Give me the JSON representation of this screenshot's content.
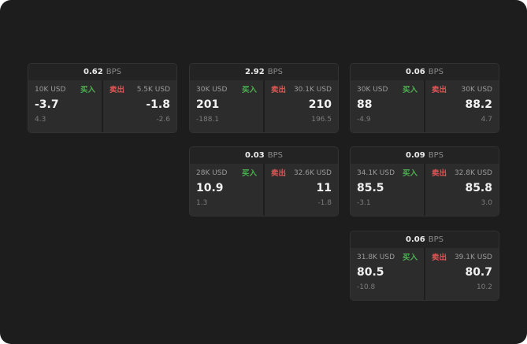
{
  "units": {
    "bps": "BPS"
  },
  "labels": {
    "buy": "买入",
    "sell": "卖出"
  },
  "colors": {
    "background": "#1d1d1d",
    "card": "#222222",
    "panel": "#2c2c2c",
    "buy_accent": "#4caf50",
    "sell_accent": "#e05555"
  },
  "cards": [
    {
      "bps": "0.62",
      "buy": {
        "amount": "10K USD",
        "price": "-3.7",
        "sub": "4.3"
      },
      "sell": {
        "amount": "5.5K USD",
        "price": "-1.8",
        "sub": "-2.6"
      }
    },
    {
      "bps": "2.92",
      "buy": {
        "amount": "30K USD",
        "price": "201",
        "sub": "-188.1"
      },
      "sell": {
        "amount": "30.1K USD",
        "price": "210",
        "sub": "196.5"
      }
    },
    {
      "bps": "0.06",
      "buy": {
        "amount": "30K USD",
        "price": "88",
        "sub": "-4.9"
      },
      "sell": {
        "amount": "30K USD",
        "price": "88.2",
        "sub": "4.7"
      }
    },
    {
      "bps": "0.03",
      "buy": {
        "amount": "28K USD",
        "price": "10.9",
        "sub": "1.3"
      },
      "sell": {
        "amount": "32.6K USD",
        "price": "11",
        "sub": "-1.8"
      }
    },
    {
      "bps": "0.09",
      "buy": {
        "amount": "34.1K USD",
        "price": "85.5",
        "sub": "-3.1"
      },
      "sell": {
        "amount": "32.8K USD",
        "price": "85.8",
        "sub": "3.0"
      }
    },
    {
      "bps": "0.06",
      "buy": {
        "amount": "31.8K USD",
        "price": "80.5",
        "sub": "-10.8"
      },
      "sell": {
        "amount": "39.1K USD",
        "price": "80.7",
        "sub": "10.2"
      }
    }
  ]
}
